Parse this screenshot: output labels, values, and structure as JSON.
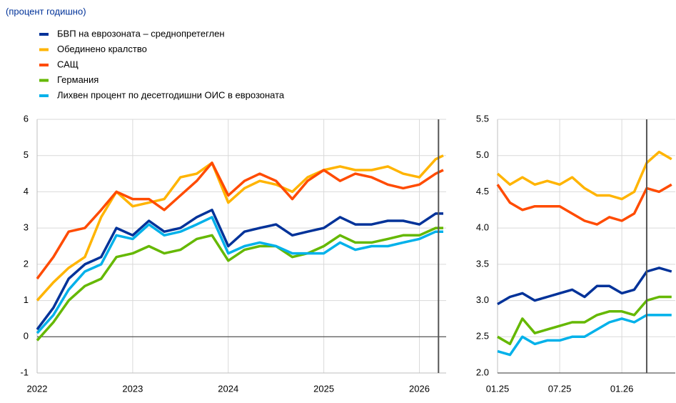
{
  "chart_data": [
    {
      "type": "line",
      "subtitle": "(процент годишно)",
      "x": [
        2022.0,
        2022.17,
        2022.33,
        2022.5,
        2022.67,
        2022.83,
        2023.0,
        2023.17,
        2023.33,
        2023.5,
        2023.67,
        2023.83,
        2024.0,
        2024.17,
        2024.33,
        2024.5,
        2024.67,
        2024.83,
        2025.0,
        2025.17,
        2025.33,
        2025.5,
        2025.67,
        2025.83,
        2026.0,
        2026.17,
        2026.25
      ],
      "series": [
        {
          "name": "БВП на еврозоната – среднопретеглен",
          "color": "#003299",
          "values": [
            0.2,
            0.8,
            1.6,
            2.0,
            2.2,
            3.0,
            2.8,
            3.2,
            2.9,
            3.0,
            3.3,
            3.5,
            2.5,
            2.9,
            3.0,
            3.1,
            2.8,
            2.9,
            3.0,
            3.3,
            3.1,
            3.1,
            3.2,
            3.2,
            3.1,
            3.4,
            3.4
          ]
        },
        {
          "name": "Обединено кралство",
          "color": "#ffb400",
          "values": [
            1.0,
            1.5,
            1.9,
            2.2,
            3.3,
            4.0,
            3.6,
            3.7,
            3.8,
            4.4,
            4.5,
            4.8,
            3.7,
            4.1,
            4.3,
            4.2,
            4.0,
            4.4,
            4.6,
            4.7,
            4.6,
            4.6,
            4.7,
            4.5,
            4.4,
            4.9,
            5.0
          ]
        },
        {
          "name": "САЩ",
          "color": "#ff4b00",
          "values": [
            1.6,
            2.2,
            2.9,
            3.0,
            3.5,
            4.0,
            3.8,
            3.8,
            3.5,
            3.9,
            4.3,
            4.8,
            3.9,
            4.3,
            4.5,
            4.3,
            3.8,
            4.3,
            4.6,
            4.3,
            4.5,
            4.4,
            4.2,
            4.1,
            4.2,
            4.5,
            4.6
          ]
        },
        {
          "name": "Германия",
          "color": "#65b800",
          "values": [
            -0.1,
            0.4,
            1.0,
            1.4,
            1.6,
            2.2,
            2.3,
            2.5,
            2.3,
            2.4,
            2.7,
            2.8,
            2.1,
            2.4,
            2.5,
            2.5,
            2.2,
            2.3,
            2.5,
            2.8,
            2.6,
            2.6,
            2.7,
            2.8,
            2.8,
            3.0,
            3.0
          ]
        },
        {
          "name": "Лихвен процент по десетгодишни ОИС в еврозоната",
          "color": "#00b1ea",
          "values": [
            0.1,
            0.6,
            1.3,
            1.8,
            2.0,
            2.8,
            2.7,
            3.1,
            2.8,
            2.9,
            3.1,
            3.3,
            2.3,
            2.5,
            2.6,
            2.5,
            2.3,
            2.3,
            2.3,
            2.6,
            2.4,
            2.5,
            2.5,
            2.6,
            2.7,
            2.9,
            2.9
          ]
        }
      ],
      "xlim": [
        2022,
        2026.28
      ],
      "xticks": [
        2022,
        2023,
        2024,
        2025,
        2026
      ],
      "ylim": [
        -1,
        6
      ],
      "yticks": [
        -1,
        0,
        1,
        2,
        3,
        4,
        5,
        6
      ],
      "grid": true,
      "vline": 2026.2
    },
    {
      "type": "line",
      "x": [
        2025.0,
        2025.1,
        2025.2,
        2025.3,
        2025.4,
        2025.5,
        2025.6,
        2025.7,
        2025.8,
        2025.9,
        2026.0,
        2026.1,
        2026.2,
        2026.3,
        2026.4
      ],
      "series": [
        {
          "color": "#003299",
          "values": [
            2.95,
            3.05,
            3.1,
            3.0,
            3.05,
            3.1,
            3.15,
            3.05,
            3.2,
            3.2,
            3.1,
            3.15,
            3.4,
            3.45,
            3.4
          ]
        },
        {
          "color": "#ffb400",
          "values": [
            4.75,
            4.6,
            4.7,
            4.6,
            4.65,
            4.6,
            4.7,
            4.55,
            4.45,
            4.45,
            4.4,
            4.5,
            4.9,
            5.05,
            4.95
          ]
        },
        {
          "color": "#ff4b00",
          "values": [
            4.6,
            4.35,
            4.25,
            4.3,
            4.3,
            4.3,
            4.2,
            4.1,
            4.05,
            4.15,
            4.1,
            4.2,
            4.55,
            4.5,
            4.6
          ]
        },
        {
          "color": "#65b800",
          "values": [
            2.5,
            2.4,
            2.75,
            2.55,
            2.6,
            2.65,
            2.7,
            2.7,
            2.8,
            2.85,
            2.85,
            2.8,
            3.0,
            3.05,
            3.05
          ]
        },
        {
          "color": "#00b1ea",
          "values": [
            2.3,
            2.25,
            2.5,
            2.4,
            2.45,
            2.45,
            2.5,
            2.5,
            2.6,
            2.7,
            2.75,
            2.7,
            2.8,
            2.8,
            2.8
          ]
        }
      ],
      "xlim": [
        2025,
        2026.43
      ],
      "xticks": [
        {
          "value": 2025,
          "label": "01.25"
        },
        {
          "value": 2025.5,
          "label": "07.25"
        },
        {
          "value": 2026,
          "label": "01.26"
        }
      ],
      "ylim": [
        2.0,
        5.5
      ],
      "yticks": [
        {
          "value": 2.0,
          "label": "2.0"
        },
        2.5,
        {
          "value": 3.0,
          "label": "3.0"
        },
        3.5,
        {
          "value": 4.0,
          "label": "4.0"
        },
        4.5,
        {
          "value": 5.0,
          "label": "5.0"
        },
        5.5
      ],
      "grid": true,
      "vline": 2026.2
    }
  ]
}
